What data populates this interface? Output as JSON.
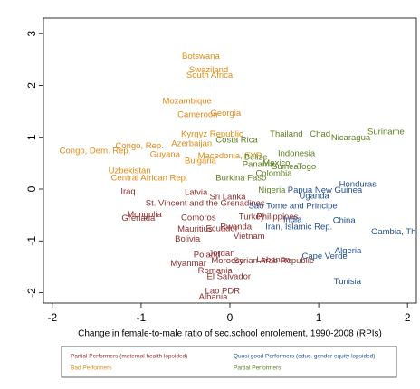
{
  "chart_data": {
    "type": "scatter",
    "x_label": "Change in female-to-male ratio of sec.school enrolement, 1990-2008 (RPIs)",
    "xlim": [
      -2.1,
      2.1
    ],
    "ylim": [
      -2.2,
      3.3
    ],
    "xticks": [
      -2,
      -1,
      0,
      1,
      2
    ],
    "yticks": [
      -2,
      -1,
      0,
      1,
      2,
      3
    ],
    "series": [
      {
        "name": "Partial Performers (maternal health lopsided)",
        "color": "#8b2d2d",
        "labels": [
          "Iraq",
          "Latvia",
          "Sri Lanka",
          "St. Vincent and the Grenadines",
          "Mongolia",
          "Grenada",
          "Comoros",
          "Turkey",
          "Philippines",
          "Mauritius",
          "Ecuador",
          "Rwanda",
          "Vietnam",
          "Bolivia",
          "Jordan",
          "Poland",
          "Morocco",
          "Syrian Arab Republic",
          "Lebanon",
          "Myanmar",
          "Romania",
          "El Salvador",
          "Lao PDR",
          "Albania"
        ],
        "x": [
          -1.23,
          -0.51,
          -0.23,
          -0.95,
          -1.16,
          -1.22,
          -0.55,
          0.1,
          0.3,
          -0.59,
          -0.27,
          -0.11,
          0.04,
          -0.62,
          -0.24,
          -0.41,
          -0.21,
          0.04,
          0.3,
          -0.67,
          -0.36,
          -0.26,
          -0.28,
          -0.35
        ],
        "values": [
          -0.05,
          -0.07,
          -0.16,
          -0.28,
          -0.5,
          -0.57,
          -0.56,
          -0.54,
          -0.54,
          -0.78,
          -0.77,
          -0.73,
          -0.92,
          -0.97,
          -1.25,
          -1.27,
          -1.39,
          -1.39,
          -1.37,
          -1.44,
          -1.58,
          -1.69,
          -1.97,
          -2.09
        ]
      },
      {
        "name": "Quasi good Performers (educ. gender equity lopsided)",
        "color": "#1f4e8c",
        "labels": [
          "Honduras",
          "Papua New Guinea",
          "Uganda",
          "Sao Tome and Principe",
          "India",
          "China",
          "Iran, Islamic Rep.",
          "Gambia, The",
          "Algeria",
          "Cape Verde",
          "Tunisia"
        ],
        "x": [
          1.23,
          0.65,
          0.78,
          0.21,
          0.6,
          1.16,
          0.4,
          1.59,
          1.18,
          0.81,
          1.17
        ],
        "values": [
          0.09,
          -0.03,
          -0.14,
          -0.33,
          -0.59,
          -0.61,
          -0.73,
          -0.83,
          -1.2,
          -1.3,
          -1.79
        ]
      },
      {
        "name": "Bad Performers",
        "color": "#e08a14",
        "labels": [
          "Botswana",
          "Swaziland",
          "South Africa",
          "Mozambique",
          "Cameroon",
          "Georgia",
          "Kyrgyz Republic",
          "Azerbaijan",
          "Congo, Rep.",
          "Congo, Dem. Rep.",
          "Guyana",
          "Macedonia, FYR",
          "Bulgaria",
          "Uzbekistan",
          "Central African Rep."
        ],
        "x": [
          -0.54,
          -0.46,
          -0.49,
          -0.76,
          -0.59,
          -0.22,
          -0.55,
          -0.66,
          -1.29,
          -1.92,
          -0.9,
          -0.36,
          -0.51,
          -1.37,
          -1.34
        ],
        "values": [
          2.56,
          2.3,
          2.19,
          1.69,
          1.43,
          1.46,
          1.06,
          0.87,
          0.83,
          0.73,
          0.66,
          0.64,
          0.54,
          0.35,
          0.21
        ]
      },
      {
        "name": "Partial Performers",
        "color": "#5d7f1e",
        "labels": [
          "Thailand",
          "Chad",
          "Nicaragua",
          "Suriname",
          "Indonesia",
          "Belize",
          "Costa Rica",
          "Mexico",
          "Guinea",
          "Togo",
          "Colombia",
          "Panama",
          "Burkina Faso",
          "Nigeria"
        ],
        "x": [
          0.45,
          0.9,
          1.14,
          1.55,
          0.54,
          0.16,
          -0.16,
          0.37,
          0.46,
          0.76,
          0.29,
          0.14,
          -0.16,
          0.32
        ],
        "values": [
          1.06,
          1.06,
          0.99,
          1.1,
          0.68,
          0.61,
          0.94,
          0.5,
          0.43,
          0.43,
          0.3,
          0.47,
          0.21,
          -0.03
        ]
      }
    ]
  }
}
